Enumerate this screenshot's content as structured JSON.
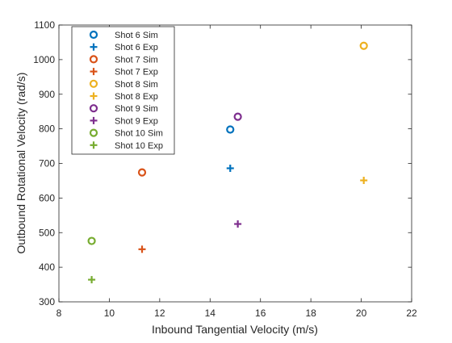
{
  "chart_data": {
    "type": "scatter",
    "xlabel": "Inbound Tangential Velocity (m/s)",
    "ylabel": "Outbound Rotational Velocity (rad/s)",
    "xlim": [
      8,
      22
    ],
    "ylim": [
      300,
      1100
    ],
    "xticks": [
      8,
      10,
      12,
      14,
      16,
      18,
      20,
      22
    ],
    "yticks": [
      300,
      400,
      500,
      600,
      700,
      800,
      900,
      1000,
      1100
    ],
    "grid": false,
    "legend_position": "top-left",
    "series": [
      {
        "name": "Shot 6 Sim",
        "marker": "circle",
        "color": "#0072BD",
        "points": [
          [
            14.8,
            798
          ]
        ]
      },
      {
        "name": "Shot 6 Exp",
        "marker": "plus",
        "color": "#0072BD",
        "points": [
          [
            14.8,
            686
          ]
        ]
      },
      {
        "name": "Shot 7 Sim",
        "marker": "circle",
        "color": "#D95319",
        "points": [
          [
            11.3,
            674
          ]
        ]
      },
      {
        "name": "Shot 7 Exp",
        "marker": "plus",
        "color": "#D95319",
        "points": [
          [
            11.3,
            452
          ]
        ]
      },
      {
        "name": "Shot 8 Sim",
        "marker": "circle",
        "color": "#EDB120",
        "points": [
          [
            20.1,
            1040
          ]
        ]
      },
      {
        "name": "Shot 8 Exp",
        "marker": "plus",
        "color": "#EDB120",
        "points": [
          [
            20.1,
            651
          ]
        ]
      },
      {
        "name": "Shot 9 Sim",
        "marker": "circle",
        "color": "#7E2F8E",
        "points": [
          [
            15.1,
            835
          ]
        ]
      },
      {
        "name": "Shot 9 Exp",
        "marker": "plus",
        "color": "#7E2F8E",
        "points": [
          [
            15.1,
            525
          ]
        ]
      },
      {
        "name": "Shot 10 Sim",
        "marker": "circle",
        "color": "#77AC30",
        "points": [
          [
            9.3,
            476
          ]
        ]
      },
      {
        "name": "Shot 10 Exp",
        "marker": "plus",
        "color": "#77AC30",
        "points": [
          [
            9.3,
            364
          ]
        ]
      }
    ]
  }
}
